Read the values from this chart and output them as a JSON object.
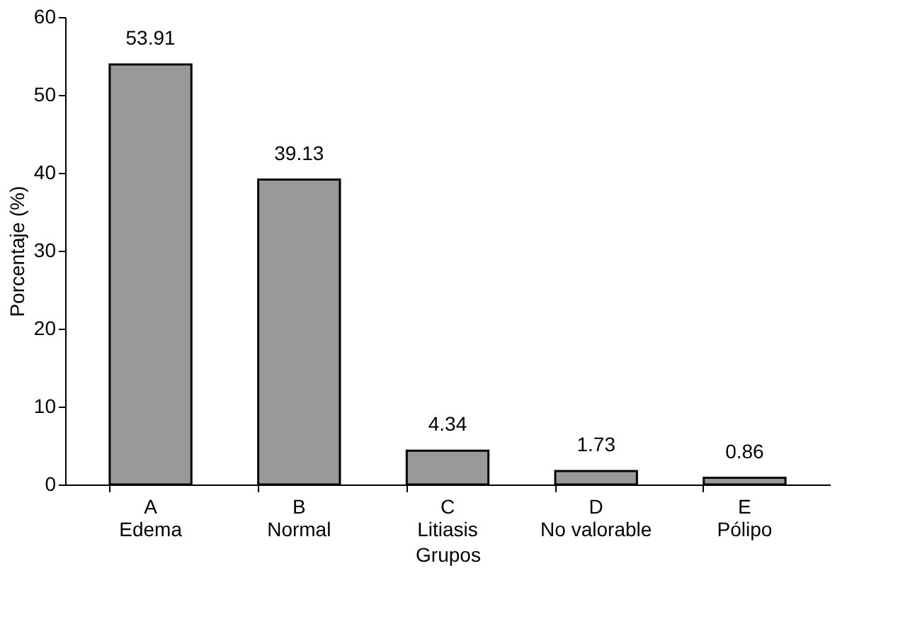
{
  "chart_data": {
    "type": "bar",
    "xlabel": "Grupos",
    "ylabel": "Porcentaje (%)",
    "categories": [
      "A\nEdema",
      "B\nNormal",
      "C\nLitiasis",
      "D\nNo valorable",
      "E\nPólipo"
    ],
    "values": [
      53.91,
      39.13,
      4.34,
      1.73,
      0.86
    ],
    "color": "#999999",
    "ylim": [
      0,
      60
    ],
    "yticks": [
      0,
      10,
      20,
      30,
      40,
      50,
      60
    ],
    "grid": false,
    "data_labels": true
  }
}
